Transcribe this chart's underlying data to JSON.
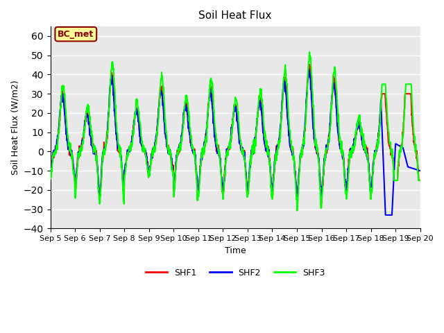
{
  "title": "Soil Heat Flux",
  "ylabel": "Soil Heat Flux (W/m2)",
  "xlabel": "Time",
  "ylim": [
    -40,
    65
  ],
  "yticks": [
    -40,
    -30,
    -20,
    -10,
    0,
    10,
    20,
    30,
    40,
    50,
    60
  ],
  "annotation_text": "BC_met",
  "annotation_box_color": "#FFFF99",
  "annotation_text_color": "#8B0000",
  "colors": {
    "SHF1": "red",
    "SHF2": "blue",
    "SHF3": "lime"
  },
  "line_width": 1.5,
  "axes_bg_color": "#E8E8E8",
  "grid_color": "white",
  "n_days": 15,
  "points_per_day": 96
}
